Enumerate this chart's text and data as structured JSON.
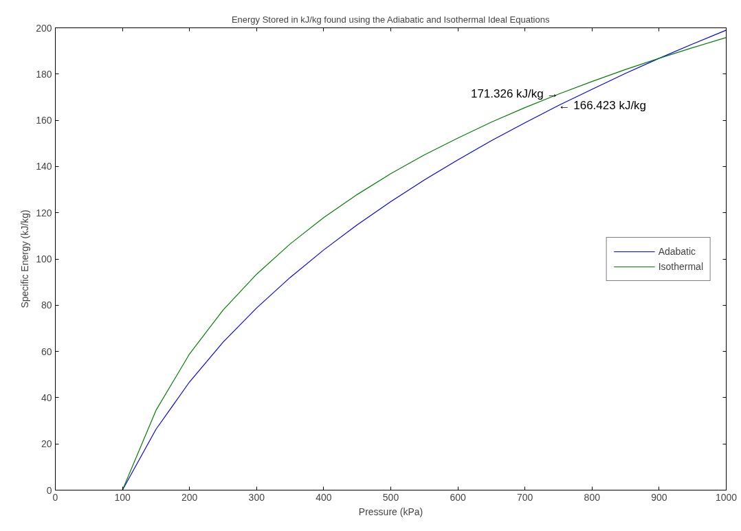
{
  "chart_data": {
    "type": "line",
    "title": "Energy Stored in kJ/kg found using the Adiabatic and Isothermal Ideal Equations",
    "xlabel": "Pressure (kPa)",
    "ylabel": "Specific Energy (kJ/kg)",
    "x": [
      100,
      150,
      200,
      250,
      300,
      350,
      400,
      450,
      500,
      550,
      600,
      650,
      700,
      750,
      800,
      850,
      900,
      950,
      1000
    ],
    "series": [
      {
        "name": "Adabatic",
        "color": "#0000ff",
        "values": [
          0,
          26.3,
          46.8,
          64.0,
          78.8,
          92.0,
          103.9,
          114.8,
          124.8,
          134.2,
          142.9,
          151.2,
          158.9,
          166.423,
          173.4,
          180.3,
          186.8,
          193.0,
          199.0
        ]
      },
      {
        "name": "Isothermal",
        "color": "#008000",
        "values": [
          0,
          34.5,
          58.9,
          77.9,
          93.4,
          106.5,
          117.9,
          127.9,
          136.9,
          145.0,
          152.3,
          159.2,
          165.5,
          171.326,
          176.8,
          182.0,
          186.8,
          191.4,
          195.8
        ]
      }
    ],
    "annotations": [
      {
        "text": "171.326 kJ/kg →",
        "x": 750,
        "y": 171.326
      },
      {
        "text": "← 166.423 kJ/kg",
        "x": 750,
        "y": 166.423
      }
    ],
    "xlim": [
      0,
      1000
    ],
    "ylim": [
      0,
      200
    ],
    "xticks": [
      0,
      100,
      200,
      300,
      400,
      500,
      600,
      700,
      800,
      900,
      1000
    ],
    "yticks": [
      0,
      20,
      40,
      60,
      80,
      100,
      120,
      140,
      160,
      180,
      200
    ],
    "grid": false,
    "legend": "right",
    "marker": "none",
    "line_style": "solid"
  }
}
